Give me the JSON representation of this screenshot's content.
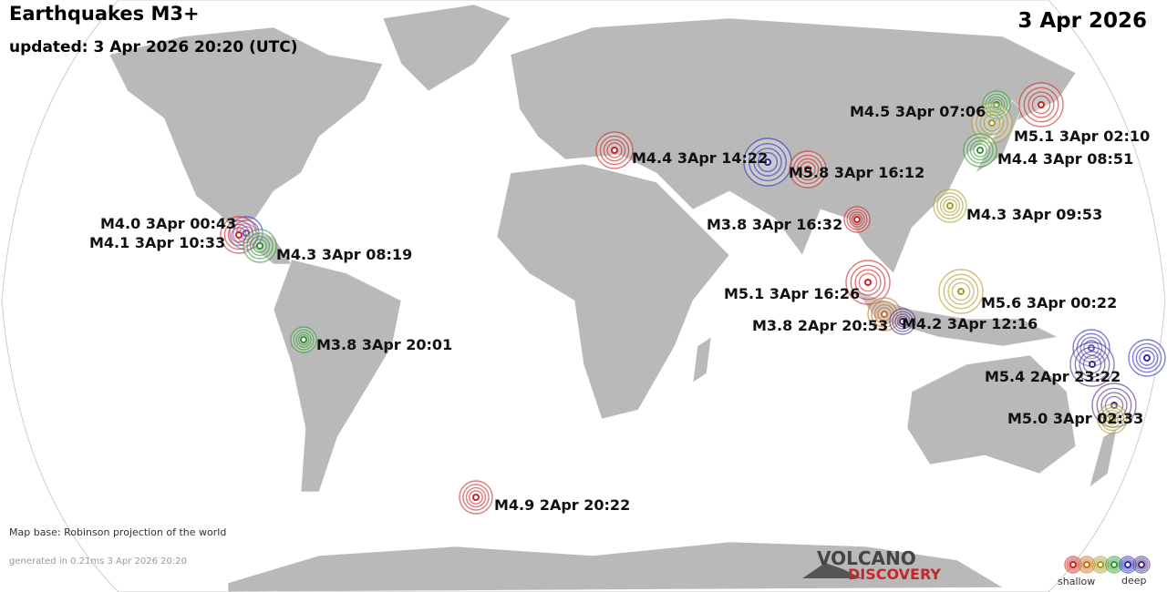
{
  "header": {
    "title": "Earthquakes M3+",
    "date": "3 Apr 2026",
    "updated": "updated:  3 Apr 2026 20:20 (UTC)"
  },
  "quakes": [
    {
      "label": "M4.5  3Apr 07:06"
    },
    {
      "label": "M5.1  3Apr 02:10"
    },
    {
      "label": "M4.4  3Apr 08:51"
    },
    {
      "label": "M4.4  3Apr 14:22"
    },
    {
      "label": "M5.8  3Apr 16:12"
    },
    {
      "label": "M3.8  3Apr 16:32"
    },
    {
      "label": "M4.3  3Apr 09:53"
    },
    {
      "label": "M4.0  3Apr 00:43"
    },
    {
      "label": "M4.1  3Apr 10:33"
    },
    {
      "label": "M4.3  3Apr 08:19"
    },
    {
      "label": "M5.1  3Apr 16:26"
    },
    {
      "label": "M5.6  3Apr 00:22"
    },
    {
      "label": "M3.8  2Apr 20:53"
    },
    {
      "label": "M4.2  3Apr 12:16"
    },
    {
      "label": "M3.8  3Apr 20:01"
    },
    {
      "label": "M5.4  2Apr 23:22"
    },
    {
      "label": "M5.0  3Apr 02:33"
    },
    {
      "label": "M4.9  2Apr 20:22"
    }
  ],
  "footer": {
    "map_base": "Map base: Robinson projection of the world",
    "generated": "generated in 0.21ms  3 Apr 2026 20:20",
    "logo_top": "VOLCANO",
    "logo_bottom": "DISCOVERY"
  },
  "legend": {
    "shallow": "shallow",
    "deep": "deep"
  }
}
